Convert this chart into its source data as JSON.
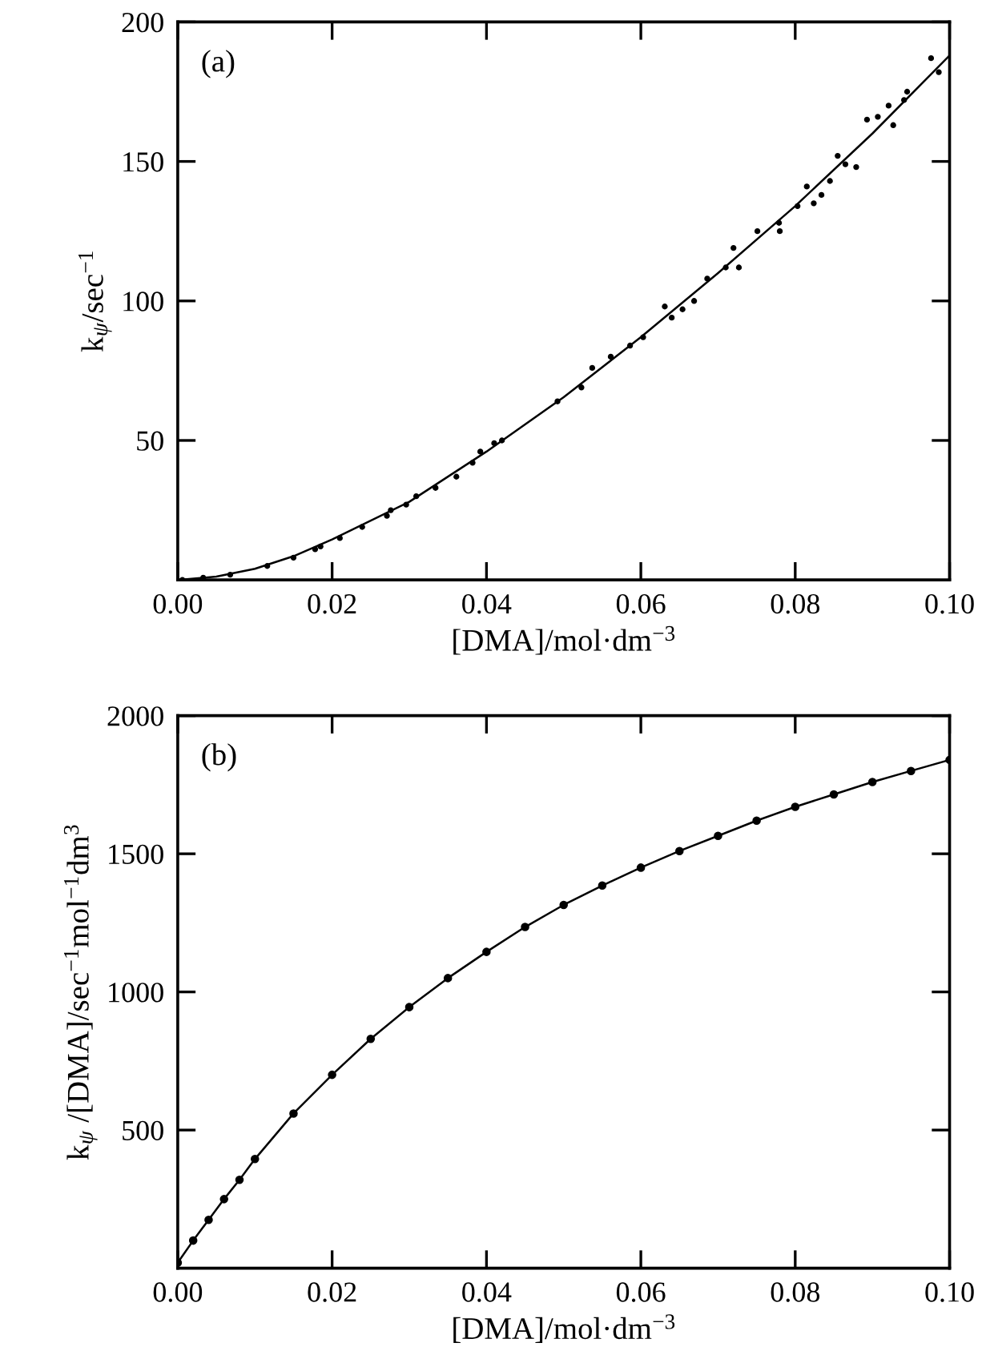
{
  "chart_data": [
    {
      "type": "scatter",
      "xlabel": "[DMA]/mol·dm$^{−3}$",
      "ylabel": "k$_{ψ}$/sec$^{−1}$",
      "annotations": [
        "(a)"
      ],
      "xlim": [
        0,
        0.1
      ],
      "ylim": [
        0,
        200
      ],
      "xticks": [
        {
          "value": 0,
          "label": "0.00"
        },
        {
          "value": 0.02,
          "label": "0.02"
        },
        {
          "value": 0.04,
          "label": "0.04"
        },
        {
          "value": 0.06,
          "label": "0.06"
        },
        {
          "value": 0.08,
          "label": "0.08"
        },
        {
          "value": 0.1,
          "label": "0.10"
        }
      ],
      "yticks": [
        50,
        100,
        150,
        200
      ],
      "grid": false,
      "series": [
        {
          "color": "#000000",
          "marker": "circle",
          "x": [
            0.0006,
            0.0033,
            0.0068,
            0.0116,
            0.015,
            0.0178,
            0.0185,
            0.021,
            0.0239,
            0.0271,
            0.0276,
            0.0296,
            0.0309,
            0.0334,
            0.0361,
            0.0382,
            0.0392,
            0.041,
            0.042,
            0.0492,
            0.0523,
            0.0537,
            0.0561,
            0.0586,
            0.0603,
            0.0631,
            0.064,
            0.0654,
            0.0669,
            0.0686,
            0.071,
            0.072,
            0.0727,
            0.0751,
            0.0779,
            0.078,
            0.0803,
            0.0815,
            0.0824,
            0.0834,
            0.0845,
            0.0855,
            0.0865,
            0.0879,
            0.0893,
            0.0907,
            0.0921,
            0.0927,
            0.0941,
            0.0945,
            0.0976,
            0.0986
          ],
          "values": [
            0,
            0.8,
            1.9,
            5,
            8,
            11,
            12,
            15,
            19,
            23,
            25,
            27,
            30,
            33,
            37,
            42,
            46,
            49,
            50,
            64,
            69,
            76,
            80,
            84,
            87,
            98,
            94,
            97,
            100,
            108,
            112,
            119,
            112,
            125,
            128,
            125,
            134,
            141,
            135,
            138,
            143,
            152,
            149,
            148,
            165,
            166,
            170,
            163,
            172,
            175,
            187,
            182
          ]
        },
        {
          "type": "line",
          "color": "#000000",
          "marker": "none",
          "line_style": "solid",
          "x": [
            0,
            0.005,
            0.01,
            0.015,
            0.02,
            0.03,
            0.04,
            0.05,
            0.06,
            0.07,
            0.08,
            0.09,
            0.1
          ],
          "values": [
            0,
            1.2,
            4,
            8.5,
            14.5,
            28,
            46,
            65.5,
            87,
            110,
            134,
            160,
            188
          ]
        }
      ]
    },
    {
      "type": "line",
      "xlabel": "[DMA]/mol·dm$^{−3}$",
      "ylabel": "k$_{ψ}$ /[DMA]/sec$^{−1}$mol$^{−1}$dm$^{3}$",
      "annotations": [
        "(b)"
      ],
      "xlim": [
        0,
        0.1
      ],
      "ylim": [
        0,
        2000
      ],
      "xticks": [
        {
          "value": 0,
          "label": "0.00"
        },
        {
          "value": 0.02,
          "label": "0.02"
        },
        {
          "value": 0.04,
          "label": "0.04"
        },
        {
          "value": 0.06,
          "label": "0.06"
        },
        {
          "value": 0.08,
          "label": "0.08"
        },
        {
          "value": 0.1,
          "label": "0.10"
        }
      ],
      "yticks": [
        500,
        1000,
        1500,
        2000
      ],
      "grid": false,
      "series": [
        {
          "color": "#000000",
          "marker": "circle",
          "line_style": "solid",
          "x": [
            0,
            0.002,
            0.004,
            0.006,
            0.008,
            0.01,
            0.015,
            0.02,
            0.025,
            0.03,
            0.035,
            0.04,
            0.045,
            0.05,
            0.055,
            0.06,
            0.065,
            0.07,
            0.075,
            0.08,
            0.085,
            0.09,
            0.095,
            0.1
          ],
          "values": [
            20,
            100,
            175,
            250,
            320,
            395,
            560,
            700,
            830,
            945,
            1050,
            1145,
            1235,
            1315,
            1385,
            1450,
            1510,
            1565,
            1620,
            1670,
            1715,
            1760,
            1800,
            1840
          ]
        }
      ]
    }
  ]
}
